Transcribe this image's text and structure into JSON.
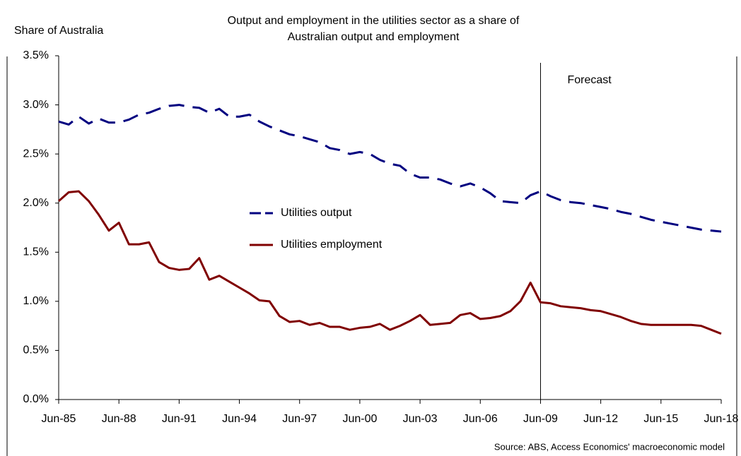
{
  "chart_data": {
    "type": "line",
    "title": [
      "Output and employment in the utilities sector as a share of",
      "Australian output and employment"
    ],
    "y_label": "Share of Australia",
    "source": "Source: ABS, Access Economics' macroeconomic model",
    "categories": [
      "Jun-85",
      null,
      null,
      null,
      null,
      null,
      "Jun-88",
      null,
      null,
      null,
      null,
      null,
      "Jun-91",
      null,
      null,
      null,
      null,
      null,
      "Jun-94",
      null,
      null,
      null,
      null,
      null,
      "Jun-97",
      null,
      null,
      null,
      null,
      null,
      "Jun-00",
      null,
      null,
      null,
      null,
      null,
      "Jun-03",
      null,
      null,
      null,
      null,
      null,
      "Jun-06",
      null,
      null,
      null,
      null,
      null,
      "Jun-09",
      null,
      null,
      null,
      null,
      null,
      "Jun-12",
      null,
      null,
      null,
      null,
      null,
      "Jun-15",
      null,
      null,
      null,
      null,
      null,
      "Jun-18"
    ],
    "series": [
      {
        "name": "Utilities output",
        "color": "#000080",
        "dashed": true,
        "values": [
          2.83,
          2.8,
          2.88,
          2.81,
          2.86,
          2.82,
          2.82,
          2.85,
          2.9,
          2.92,
          2.96,
          2.99,
          3.0,
          2.98,
          2.97,
          2.92,
          2.96,
          2.88,
          2.88,
          2.9,
          2.83,
          2.78,
          2.74,
          2.7,
          2.68,
          2.65,
          2.62,
          2.56,
          2.54,
          2.5,
          2.52,
          2.5,
          2.44,
          2.4,
          2.38,
          2.3,
          2.26,
          2.26,
          2.24,
          2.2,
          2.17,
          2.2,
          2.16,
          2.1,
          2.02,
          2.01,
          2.0,
          2.08,
          2.12,
          2.07,
          2.03,
          2.01,
          2.0,
          1.98,
          1.96,
          1.94,
          1.91,
          1.89,
          1.86,
          1.83,
          1.81,
          1.79,
          1.77,
          1.75,
          1.73,
          1.72,
          1.71
        ]
      },
      {
        "name": "Utilities employment",
        "color": "#800000",
        "dashed": false,
        "values": [
          2.02,
          2.11,
          2.12,
          2.02,
          1.88,
          1.72,
          1.8,
          1.58,
          1.58,
          1.6,
          1.4,
          1.34,
          1.32,
          1.33,
          1.44,
          1.22,
          1.26,
          1.2,
          1.14,
          1.08,
          1.01,
          1.0,
          0.85,
          0.79,
          0.8,
          0.76,
          0.78,
          0.74,
          0.74,
          0.71,
          0.73,
          0.74,
          0.77,
          0.71,
          0.75,
          0.8,
          0.86,
          0.76,
          0.77,
          0.78,
          0.86,
          0.88,
          0.82,
          0.83,
          0.85,
          0.9,
          1.0,
          1.19,
          0.99,
          0.98,
          0.95,
          0.94,
          0.93,
          0.91,
          0.9,
          0.87,
          0.84,
          0.8,
          0.77,
          0.76,
          0.76,
          0.76,
          0.76,
          0.76,
          0.75,
          0.71,
          0.67
        ]
      }
    ],
    "annotations": [
      {
        "text": "Forecast",
        "x": "Jun-09"
      }
    ],
    "ylim": [
      0,
      3.5
    ],
    "yticks": [
      {
        "value": 0,
        "label": "0.0%"
      },
      {
        "value": 0.5,
        "label": "0.5%"
      },
      {
        "value": 1,
        "label": "1.0%"
      },
      {
        "value": 1.5,
        "label": "1.5%"
      },
      {
        "value": 2,
        "label": "2.0%"
      },
      {
        "value": 2.5,
        "label": "2.5%"
      },
      {
        "value": 3,
        "label": "3.0%"
      },
      {
        "value": 3.5,
        "label": "3.5%"
      }
    ],
    "grid": false
  }
}
